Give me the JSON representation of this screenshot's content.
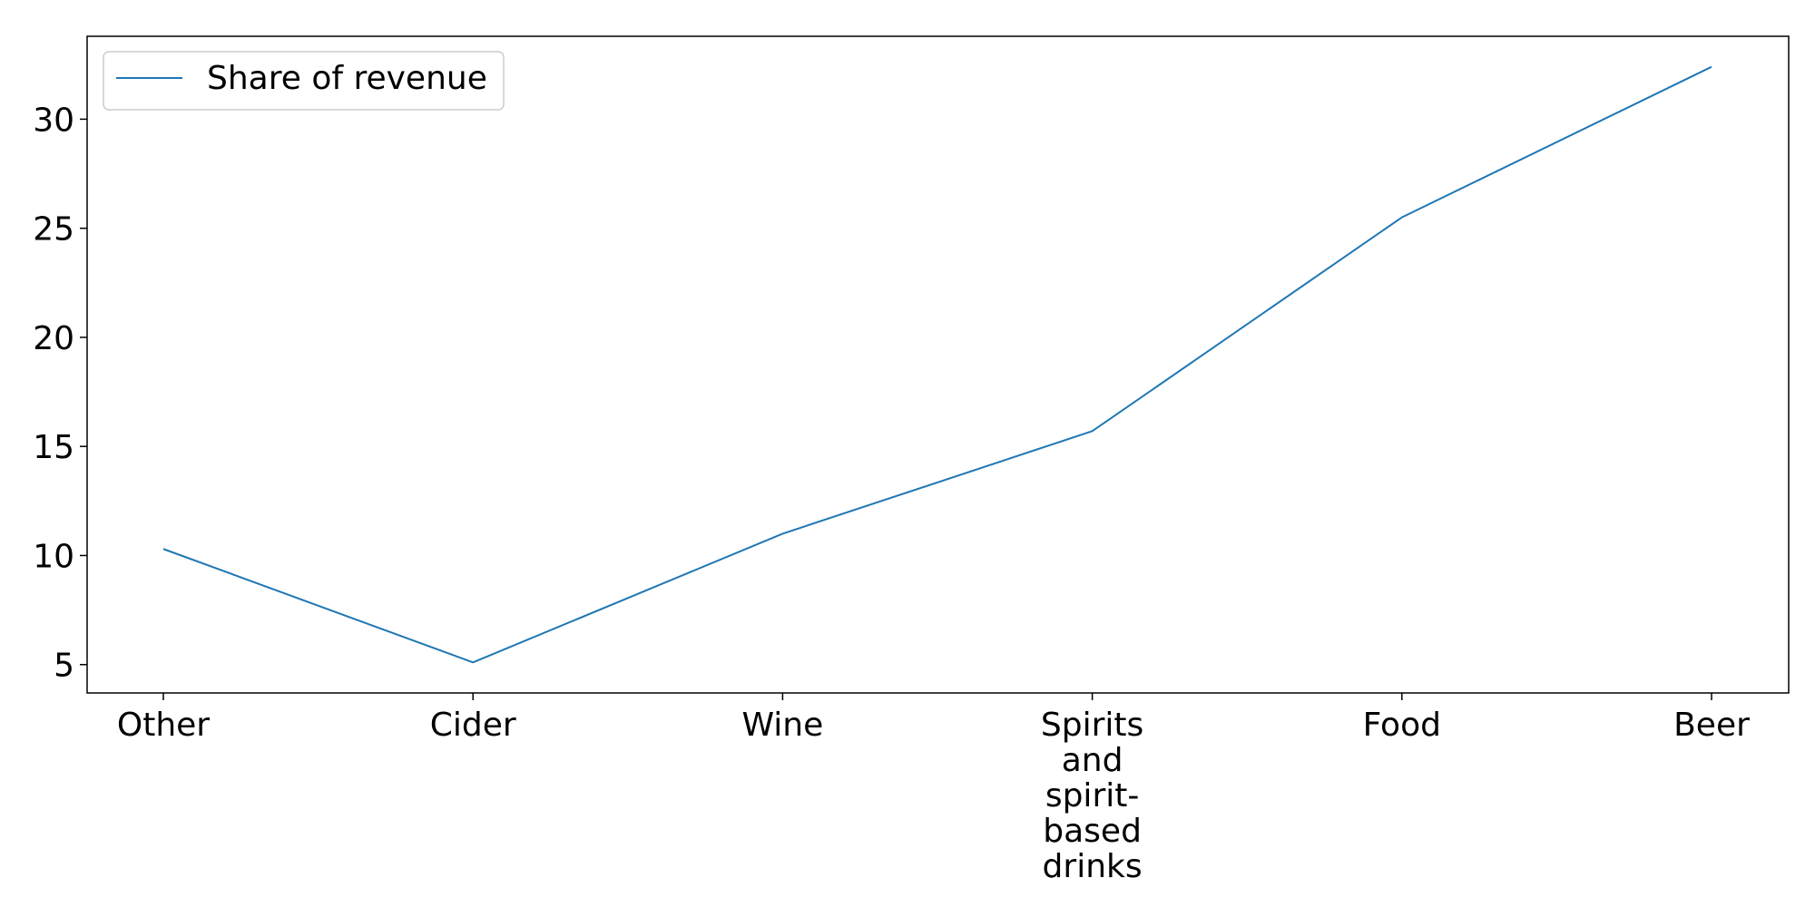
{
  "chart_data": {
    "type": "line",
    "categories": [
      "Other",
      "Cider",
      "Wine",
      "Spirits and spirit-based drinks",
      "Food",
      "Beer"
    ],
    "category_label_lines": [
      [
        "Other"
      ],
      [
        "Cider"
      ],
      [
        "Wine"
      ],
      [
        "Spirits",
        "and",
        "spirit-",
        "based",
        "drinks"
      ],
      [
        "Food"
      ],
      [
        "Beer"
      ]
    ],
    "series": [
      {
        "name": "Share of revenue",
        "values": [
          10.3,
          5.1,
          11.0,
          15.7,
          25.5,
          32.4
        ],
        "color": "#1f77b4"
      }
    ],
    "yticks": [
      5,
      10,
      15,
      20,
      25,
      30
    ],
    "ylim": [
      3.7,
      33.8
    ],
    "grid": false,
    "legend_position": "top-left"
  }
}
